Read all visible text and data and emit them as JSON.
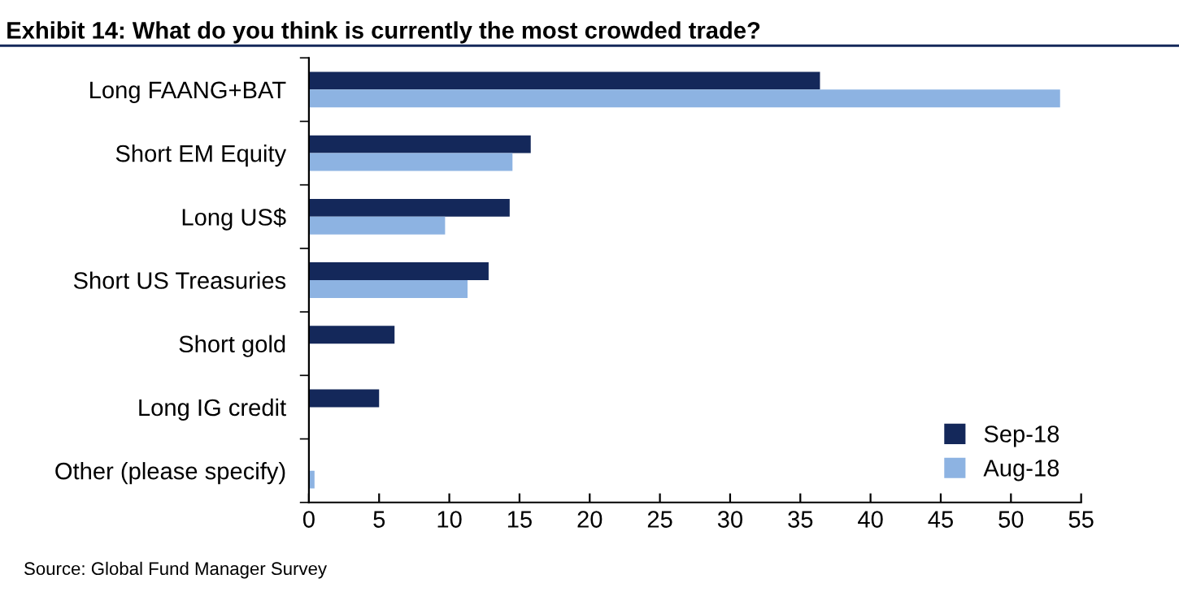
{
  "chart_data": {
    "type": "bar",
    "orientation": "horizontal",
    "title": "Exhibit 14: What do you think is currently the most crowded trade?",
    "categories": [
      "Long FAANG+BAT",
      "Short EM Equity",
      "Long US$",
      "Short US Treasuries",
      "Short gold",
      "Long IG credit",
      "Other (please specify)"
    ],
    "series": [
      {
        "name": "Sep-18",
        "color": "#14285a",
        "values": [
          36.4,
          15.8,
          14.3,
          12.8,
          6.1,
          5.0,
          0
        ]
      },
      {
        "name": "Aug-18",
        "color": "#8db3e2",
        "values": [
          53.5,
          14.5,
          9.7,
          11.3,
          0,
          0,
          0.4
        ]
      }
    ],
    "xlim": [
      0,
      55
    ],
    "xticks": [
      0,
      5,
      10,
      15,
      20,
      25,
      30,
      35,
      40,
      45,
      50,
      55
    ],
    "grid": false,
    "legend": "bottom right",
    "annotations": [
      "Source: Global Fund Manager Survey"
    ]
  }
}
